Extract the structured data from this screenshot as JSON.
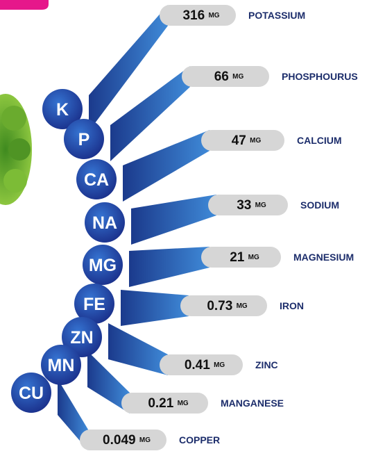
{
  "items": [
    {
      "symbol": "K",
      "value": 316,
      "unit": "MG",
      "name": "POTASSIUM"
    },
    {
      "symbol": "P",
      "value": 66,
      "unit": "MG",
      "name": "PHOSPHOURUS"
    },
    {
      "symbol": "CA",
      "value": 47,
      "unit": "MG",
      "name": "CALCIUM"
    },
    {
      "symbol": "NA",
      "value": 33,
      "unit": "MG",
      "name": "SODIUM"
    },
    {
      "symbol": "MG",
      "value": 21,
      "unit": "MG",
      "name": "MAGNESIUM"
    },
    {
      "symbol": "FE",
      "value": 0.73,
      "unit": "MG",
      "name": "IRON"
    },
    {
      "symbol": "ZN",
      "value": 0.41,
      "unit": "MG",
      "name": "ZINC"
    },
    {
      "symbol": "MN",
      "value": 0.21,
      "unit": "MG",
      "name": "MANGANESE"
    },
    {
      "symbol": "CU",
      "value": 0.049,
      "unit": "MG",
      "name": "COPPER"
    }
  ]
}
